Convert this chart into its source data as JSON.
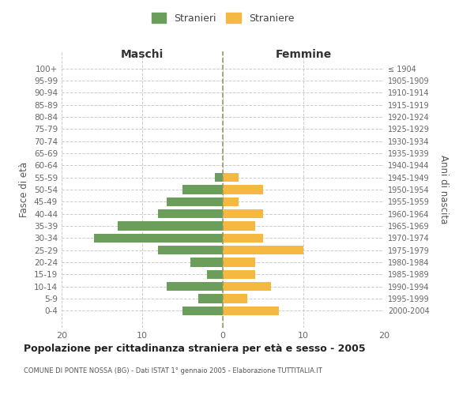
{
  "age_groups": [
    "100+",
    "95-99",
    "90-94",
    "85-89",
    "80-84",
    "75-79",
    "70-74",
    "65-69",
    "60-64",
    "55-59",
    "50-54",
    "45-49",
    "40-44",
    "35-39",
    "30-34",
    "25-29",
    "20-24",
    "15-19",
    "10-14",
    "5-9",
    "0-4"
  ],
  "birth_years": [
    "≤ 1904",
    "1905-1909",
    "1910-1914",
    "1915-1919",
    "1920-1924",
    "1925-1929",
    "1930-1934",
    "1935-1939",
    "1940-1944",
    "1945-1949",
    "1950-1954",
    "1955-1959",
    "1960-1964",
    "1965-1969",
    "1970-1974",
    "1975-1979",
    "1980-1984",
    "1985-1989",
    "1990-1994",
    "1995-1999",
    "2000-2004"
  ],
  "males": [
    0,
    0,
    0,
    0,
    0,
    0,
    0,
    0,
    0,
    1,
    5,
    7,
    8,
    13,
    16,
    8,
    4,
    2,
    7,
    3,
    5
  ],
  "females": [
    0,
    0,
    0,
    0,
    0,
    0,
    0,
    0,
    0,
    2,
    5,
    2,
    5,
    4,
    5,
    10,
    4,
    4,
    6,
    3,
    7
  ],
  "male_color": "#6a9e5a",
  "female_color": "#f5b942",
  "center_line_color": "#999966",
  "grid_color": "#cccccc",
  "background_color": "#ffffff",
  "title": "Popolazione per cittadinanza straniera per età e sesso - 2005",
  "subtitle": "COMUNE DI PONTE NOSSA (BG) - Dati ISTAT 1° gennaio 2005 - Elaborazione TUTTITALIA.IT",
  "left_header": "Maschi",
  "right_header": "Femmine",
  "left_ylabel": "Fasce di età",
  "right_ylabel": "Anni di nascita",
  "legend_male": "Stranieri",
  "legend_female": "Straniere",
  "xlim": 20,
  "bar_height": 0.75
}
